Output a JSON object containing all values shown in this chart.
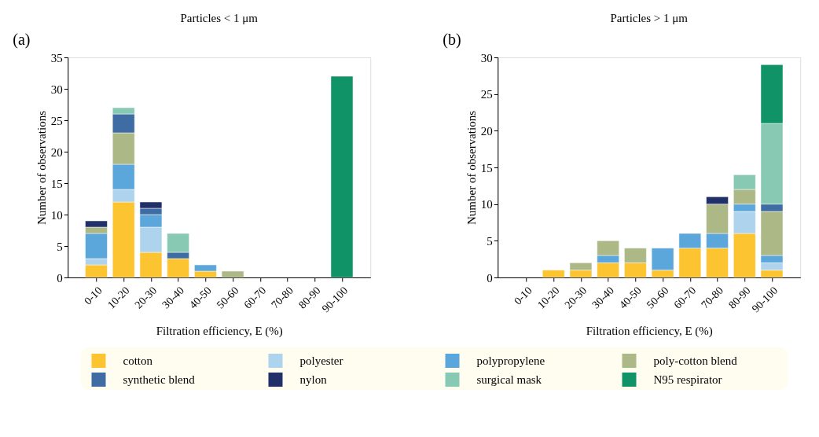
{
  "chart_data": [
    {
      "type": "bar",
      "title": "Particles < 1 μm",
      "annotations": [
        "(a)"
      ],
      "xlabel": "Filtration efficiency, E (%)",
      "ylabel": "Number of observations",
      "categories": [
        "0-10",
        "10-20",
        "20-30",
        "30-40",
        "40-50",
        "50-60",
        "60-70",
        "70-80",
        "80-90",
        "90-100"
      ],
      "stacked": true,
      "ylim": [
        0,
        35
      ],
      "yticks": [
        0,
        5,
        10,
        15,
        20,
        25,
        30,
        35
      ],
      "grid": false,
      "legend": "bottom",
      "series": [
        {
          "name": "cotton",
          "color": "#fdc431",
          "values": [
            2,
            12,
            4,
            3,
            1,
            0,
            0,
            0,
            0,
            0
          ]
        },
        {
          "name": "polyester",
          "color": "#add3ed",
          "values": [
            1,
            2,
            4,
            0,
            0,
            0,
            0,
            0,
            0,
            0
          ]
        },
        {
          "name": "polypropylene",
          "color": "#5ba7db",
          "values": [
            4,
            4,
            2,
            0,
            1,
            0,
            0,
            0,
            0,
            0
          ]
        },
        {
          "name": "poly-cotton blend",
          "color": "#acb885",
          "values": [
            1,
            5,
            0,
            0,
            0,
            1,
            0,
            0,
            0,
            0
          ]
        },
        {
          "name": "synthetic blend",
          "color": "#3f6ca3",
          "values": [
            0,
            3,
            1,
            1,
            0,
            0,
            0,
            0,
            0,
            0
          ]
        },
        {
          "name": "nylon",
          "color": "#22306a",
          "values": [
            1,
            0,
            1,
            0,
            0,
            0,
            0,
            0,
            0,
            0
          ]
        },
        {
          "name": "surgical mask",
          "color": "#87c9b3",
          "values": [
            0,
            1,
            0,
            3,
            0,
            0,
            0,
            0,
            0,
            0
          ]
        },
        {
          "name": "N95 respirator",
          "color": "#0f9367",
          "values": [
            0,
            0,
            0,
            0,
            0,
            0,
            0,
            0,
            0,
            32
          ]
        }
      ]
    },
    {
      "type": "bar",
      "title": "Particles > 1 μm",
      "annotations": [
        "(b)"
      ],
      "xlabel": "Filtration efficiency, E (%)",
      "ylabel": "Number of observations",
      "categories": [
        "0-10",
        "10-20",
        "20-30",
        "30-40",
        "40-50",
        "50-60",
        "60-70",
        "70-80",
        "80-90",
        "90-100"
      ],
      "stacked": true,
      "ylim": [
        0,
        30
      ],
      "yticks": [
        0,
        5,
        10,
        15,
        20,
        25,
        30
      ],
      "grid": false,
      "legend": "bottom",
      "series": [
        {
          "name": "cotton",
          "color": "#fdc431",
          "values": [
            0,
            1,
            1,
            2,
            2,
            1,
            4,
            4,
            6,
            1
          ]
        },
        {
          "name": "polyester",
          "color": "#add3ed",
          "values": [
            0,
            0,
            0,
            0,
            0,
            0,
            0,
            0,
            3,
            1
          ]
        },
        {
          "name": "polypropylene",
          "color": "#5ba7db",
          "values": [
            0,
            0,
            0,
            1,
            0,
            3,
            2,
            2,
            1,
            1
          ]
        },
        {
          "name": "poly-cotton blend",
          "color": "#acb885",
          "values": [
            0,
            0,
            1,
            2,
            2,
            0,
            0,
            4,
            2,
            6
          ]
        },
        {
          "name": "synthetic blend",
          "color": "#3f6ca3",
          "values": [
            0,
            0,
            0,
            0,
            0,
            0,
            0,
            0,
            0,
            1
          ]
        },
        {
          "name": "nylon",
          "color": "#22306a",
          "values": [
            0,
            0,
            0,
            0,
            0,
            0,
            0,
            1,
            0,
            0
          ]
        },
        {
          "name": "surgical mask",
          "color": "#87c9b3",
          "values": [
            0,
            0,
            0,
            0,
            0,
            0,
            0,
            0,
            2,
            11
          ]
        },
        {
          "name": "N95 respirator",
          "color": "#0f9367",
          "values": [
            0,
            0,
            0,
            0,
            0,
            0,
            0,
            0,
            0,
            8
          ]
        }
      ]
    }
  ]
}
